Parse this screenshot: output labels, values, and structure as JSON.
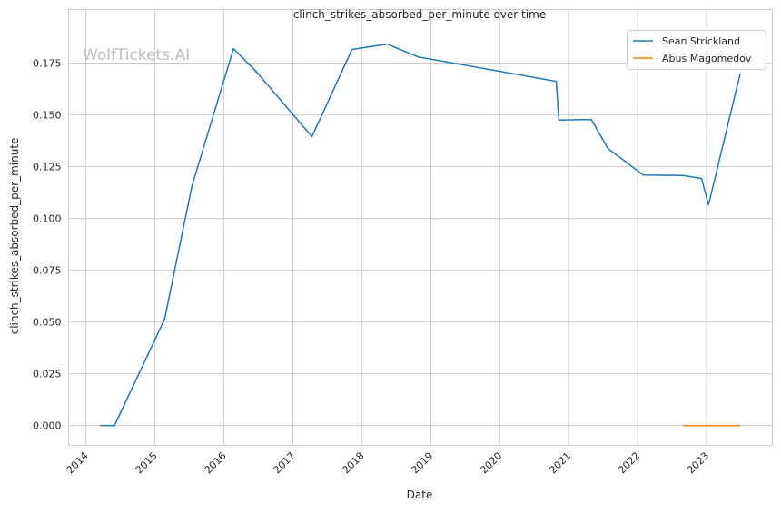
{
  "chart_data": {
    "type": "line",
    "title": "clinch_strikes_absorbed_per_minute over time",
    "xlabel": "Date",
    "ylabel": "clinch_strikes_absorbed_per_minute",
    "watermark": "WolfTickets.AI",
    "xlim": [
      "2013-10-01",
      "2023-12-15"
    ],
    "ylim": [
      -0.0096,
      0.2009
    ],
    "x_ticks": [
      "2014",
      "2015",
      "2016",
      "2017",
      "2018",
      "2019",
      "2020",
      "2021",
      "2022",
      "2023"
    ],
    "y_ticks": [
      "0.000",
      "0.025",
      "0.050",
      "0.075",
      "0.100",
      "0.125",
      "0.150",
      "0.175"
    ],
    "grid": true,
    "legend_position": "top-right",
    "series": [
      {
        "name": "Sean Strickland",
        "color": "#1f77b4",
        "x": [
          "2014-03-17",
          "2014-06-01",
          "2015-02-21",
          "2015-07-16",
          "2016-02-21",
          "2016-06-20",
          "2017-04-12",
          "2017-11-10",
          "2018-05-15",
          "2018-10-26",
          "2020-10-27",
          "2020-11-10",
          "2021-05-01",
          "2021-07-27",
          "2022-01-30",
          "2022-08-29",
          "2022-12-05",
          "2023-01-11",
          "2023-06-28"
        ],
        "y": [
          0.0,
          0.0,
          0.0513,
          0.1158,
          0.182,
          0.171,
          0.1395,
          0.1816,
          0.1842,
          0.178,
          0.1662,
          0.1475,
          0.1478,
          0.1338,
          0.121,
          0.1208,
          0.1193,
          0.1066,
          0.17
        ]
      },
      {
        "name": "Abus Magomedov",
        "color": "#ff7f0e",
        "x": [
          "2022-08-29",
          "2023-06-28"
        ],
        "y": [
          0.0,
          0.0
        ]
      }
    ]
  }
}
